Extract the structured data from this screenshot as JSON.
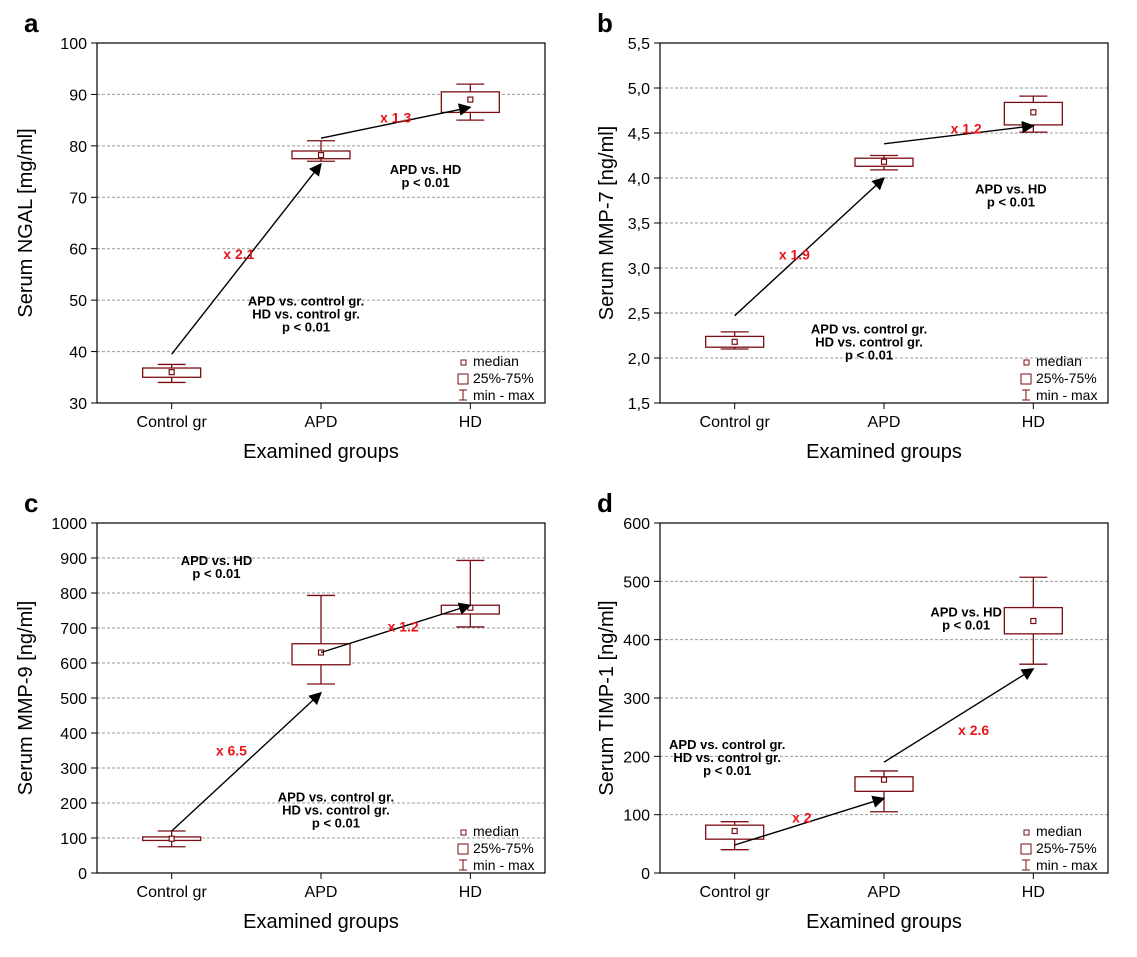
{
  "chart_data": [
    {
      "panel": "a",
      "type": "box",
      "xlabel": "Examined groups",
      "ylabel": "Serum NGAL [mg/ml]",
      "categories": [
        "Control gr",
        "APD",
        "HD"
      ],
      "ylim": [
        30,
        100
      ],
      "yticks": [
        "30",
        "40",
        "50",
        "60",
        "70",
        "80",
        "90",
        "100"
      ],
      "boxes": [
        {
          "min": 34,
          "q1": 35,
          "median": 36,
          "q3": 36.8,
          "max": 37.5
        },
        {
          "min": 77,
          "q1": 77.5,
          "median": 78.2,
          "q3": 79,
          "max": 81
        },
        {
          "min": 85,
          "q1": 86.5,
          "median": 89,
          "q3": 90.5,
          "max": 92
        }
      ],
      "arrows": [
        {
          "from_cat": 0,
          "from_y": 39.5,
          "to_cat": 1,
          "to_y": 76.5
        },
        {
          "from_cat": 1,
          "from_y": 81.5,
          "to_cat": 2,
          "to_y": 87.5
        }
      ],
      "fold_labels": [
        {
          "text": "x 2.1",
          "cat": 0.45,
          "y": 59
        },
        {
          "text": "x 1.3",
          "cat": 1.5,
          "y": 85.5
        }
      ],
      "notes": [
        {
          "lines": [
            "APD vs. HD",
            "p < 0.01"
          ],
          "cat": 1.7,
          "y": 74.5
        },
        {
          "lines": [
            "APD vs. control gr.",
            "HD vs. control gr.",
            "p < 0.01"
          ],
          "cat": 0.9,
          "y": 49
        }
      ],
      "legend": [
        "median",
        "25%-75%",
        "min - max"
      ]
    },
    {
      "panel": "b",
      "type": "box",
      "xlabel": "Examined groups",
      "ylabel": "Serum MMP-7 [ng/ml]",
      "categories": [
        "Control gr",
        "APD",
        "HD"
      ],
      "ylim": [
        1.5,
        5.5
      ],
      "yticks": [
        "1,5",
        "2,0",
        "2,5",
        "3,0",
        "3,5",
        "4,0",
        "4,5",
        "5,0",
        "5,5"
      ],
      "boxes": [
        {
          "min": 2.1,
          "q1": 2.12,
          "median": 2.18,
          "q3": 2.24,
          "max": 2.29
        },
        {
          "min": 4.09,
          "q1": 4.13,
          "median": 4.18,
          "q3": 4.22,
          "max": 4.25
        },
        {
          "min": 4.51,
          "q1": 4.59,
          "median": 4.73,
          "q3": 4.84,
          "max": 4.91
        }
      ],
      "arrows": [
        {
          "from_cat": 0,
          "from_y": 2.47,
          "to_cat": 1,
          "to_y": 4.0
        },
        {
          "from_cat": 1,
          "from_y": 4.38,
          "to_cat": 2,
          "to_y": 4.58
        }
      ],
      "fold_labels": [
        {
          "text": "x 1.9",
          "cat": 0.4,
          "y": 3.15
        },
        {
          "text": "x 1.2",
          "cat": 1.55,
          "y": 4.55
        }
      ],
      "notes": [
        {
          "lines": [
            "APD vs. HD",
            "p < 0.01"
          ],
          "cat": 1.85,
          "y": 3.83
        },
        {
          "lines": [
            "APD vs. control gr.",
            "HD vs. control gr.",
            "p < 0.01"
          ],
          "cat": 0.9,
          "y": 2.27
        }
      ],
      "legend": [
        "median",
        "25%-75%",
        "min - max"
      ]
    },
    {
      "panel": "c",
      "type": "box",
      "xlabel": "Examined groups",
      "ylabel": "Serum MMP-9 [ng/ml]",
      "categories": [
        "Control gr",
        "APD",
        "HD"
      ],
      "ylim": [
        0,
        1000
      ],
      "yticks": [
        "0",
        "100",
        "200",
        "300",
        "400",
        "500",
        "600",
        "700",
        "800",
        "900",
        "1000"
      ],
      "boxes": [
        {
          "min": 75,
          "q1": 93,
          "median": 98,
          "q3": 103,
          "max": 120
        },
        {
          "min": 540,
          "q1": 595,
          "median": 630,
          "q3": 655,
          "max": 793
        },
        {
          "min": 703,
          "q1": 740,
          "median": 758,
          "q3": 765,
          "max": 893
        }
      ],
      "arrows": [
        {
          "from_cat": 0,
          "from_y": 120,
          "to_cat": 1,
          "to_y": 515
        },
        {
          "from_cat": 1,
          "from_y": 630,
          "to_cat": 2,
          "to_y": 765
        }
      ],
      "fold_labels": [
        {
          "text": "x 6.5",
          "cat": 0.4,
          "y": 350
        },
        {
          "text": "x 1.2",
          "cat": 1.55,
          "y": 705
        }
      ],
      "notes": [
        {
          "lines": [
            "APD vs. HD",
            "p < 0.01"
          ],
          "cat": 0.3,
          "y": 880
        },
        {
          "lines": [
            "APD vs. control gr.",
            "HD vs. control gr.",
            "p < 0.01"
          ],
          "cat": 1.1,
          "y": 205
        }
      ],
      "legend": [
        "median",
        "25%-75%",
        "min - max"
      ]
    },
    {
      "panel": "d",
      "type": "box",
      "xlabel": "Examined groups",
      "ylabel": "Serum TIMP-1 [ng/ml]",
      "categories": [
        "Control gr",
        "APD",
        "HD"
      ],
      "ylim": [
        0,
        600
      ],
      "yticks": [
        "0",
        "100",
        "200",
        "300",
        "400",
        "500",
        "600"
      ],
      "boxes": [
        {
          "min": 40,
          "q1": 58,
          "median": 72,
          "q3": 82,
          "max": 88
        },
        {
          "min": 105,
          "q1": 140,
          "median": 160,
          "q3": 165,
          "max": 175
        },
        {
          "min": 358,
          "q1": 410,
          "median": 432,
          "q3": 455,
          "max": 507
        }
      ],
      "arrows": [
        {
          "from_cat": 0,
          "from_y": 48,
          "to_cat": 1,
          "to_y": 128
        },
        {
          "from_cat": 1,
          "from_y": 190,
          "to_cat": 2,
          "to_y": 350
        }
      ],
      "fold_labels": [
        {
          "text": "x 2",
          "cat": 0.45,
          "y": 95
        },
        {
          "text": "x 2.6",
          "cat": 1.6,
          "y": 245
        }
      ],
      "notes": [
        {
          "lines": [
            "APD vs. HD",
            "p < 0.01"
          ],
          "cat": 1.55,
          "y": 440
        },
        {
          "lines": [
            "APD vs. control gr.",
            "HD vs. control gr.",
            "p < 0.01"
          ],
          "cat": -0.05,
          "y": 213
        }
      ],
      "legend": [
        "median",
        "25%-75%",
        "min - max"
      ]
    }
  ]
}
